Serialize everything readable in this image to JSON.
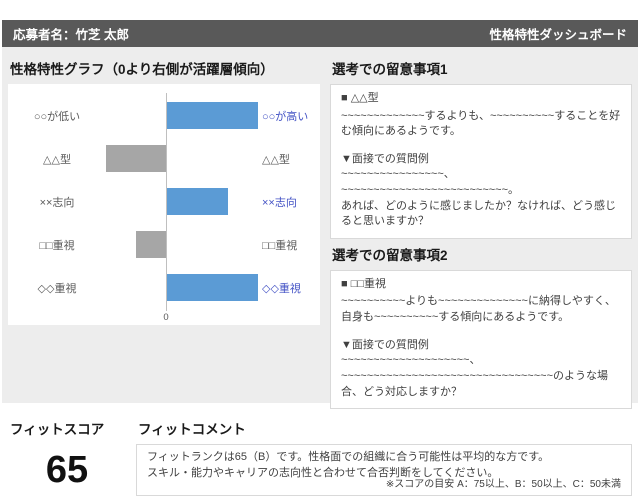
{
  "header": {
    "applicant": "応募者名：竹芝 太郎",
    "title": "性格特性ダッシュボード"
  },
  "chart_data": {
    "type": "bar",
    "orientation": "horizontal-diverging",
    "title": "性格特性グラフ（0より右側が活躍層傾向）",
    "axis": {
      "min": -40,
      "max": 60,
      "zero_label": "0",
      "note": "0より右側が活躍層傾向"
    },
    "colors": {
      "positive_bar": "#5b9bd5",
      "negative_bar": "#a6a6a6",
      "positive_label": "#4352c5",
      "negative_label": "#595959"
    },
    "rows": [
      {
        "left_label": "○○が低い",
        "right_label": "○○が高い",
        "value": 60
      },
      {
        "left_label": "△△型",
        "right_label": "△△型",
        "value": -40
      },
      {
        "left_label": "××志向",
        "right_label": "××志向",
        "value": 40
      },
      {
        "left_label": "□□重視",
        "right_label": "□□重視",
        "value": -20
      },
      {
        "left_label": "◇◇重視",
        "right_label": "◇◇重視",
        "value": 60
      }
    ]
  },
  "notes1": {
    "title": "選考での留意事項1",
    "trait": "■ △△型",
    "description_lines": [
      "~~~~~~~~~~~~~するよりも、~~~~~~~~~~することを好む傾向にあるようです。"
    ],
    "question_title": "▼面接での質問例",
    "question_lines": [
      "~~~~~~~~~~~~~~~~、",
      "~~~~~~~~~~~~~~~~~~~~~~~~~~。",
      "あれば、どのように感じましたか？なければ、どう感じると思いますか？"
    ]
  },
  "notes2": {
    "title": "選考での留意事項2",
    "trait": "■ □□重視",
    "description_lines": [
      "~~~~~~~~~~よりも~~~~~~~~~~~~~~に納得しやすく、",
      "自身も~~~~~~~~~~する傾向にあるようです。"
    ],
    "question_title": "▼面接での質問例",
    "question_lines": [
      "~~~~~~~~~~~~~~~~~~~~、",
      "~~~~~~~~~~~~~~~~~~~~~~~~~~~~~~~~~のような場合、どう対応しますか？"
    ]
  },
  "fit_score": {
    "title": "フィットスコア",
    "value": "65"
  },
  "fit_comment": {
    "title": "フィットコメント",
    "lines": [
      "フィットランクは65（B）です。性格面での組織に合う可能性は平均的な方です。",
      "スキル・能力やキャリアの志向性と合わせて合否判断をしてください。"
    ],
    "footnote": "※スコアの目安 A：75以上、B：50以上、C：50未満"
  }
}
